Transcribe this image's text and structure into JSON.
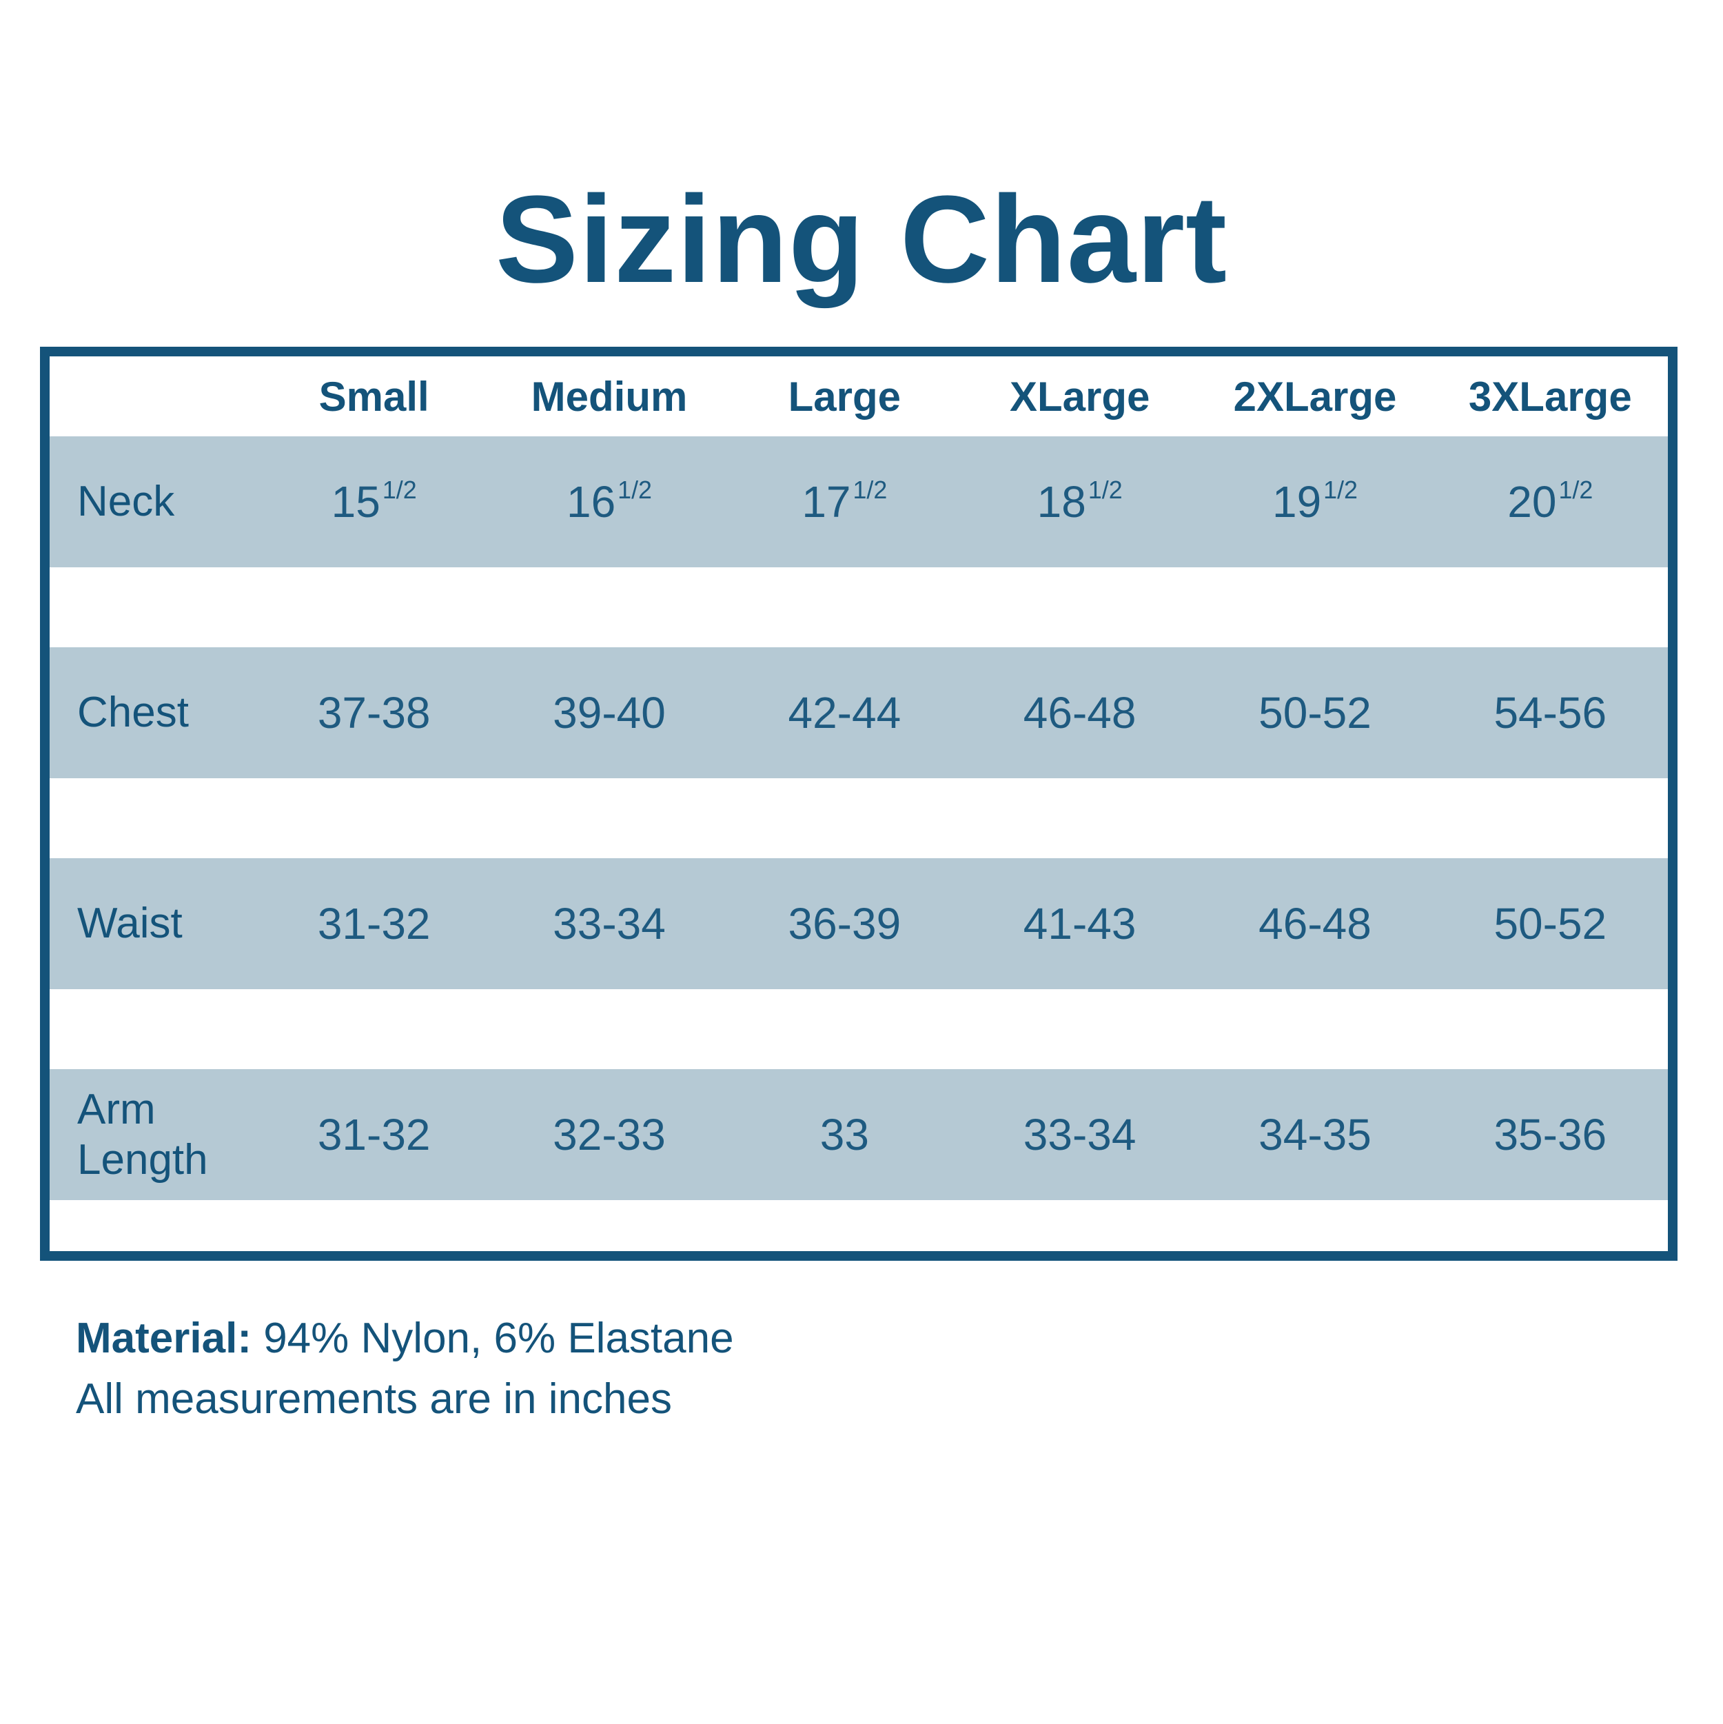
{
  "title": "Sizing Chart",
  "colors": {
    "navy": "#14537A",
    "stripe": "#B5C9D4",
    "value_text": "#1E5A80",
    "background": "#FFFFFF"
  },
  "table": {
    "size_headers": [
      "Small",
      "Medium",
      "Large",
      "XLarge",
      "2XLarge",
      "3XLarge"
    ],
    "rows": [
      {
        "label": "Neck",
        "values": [
          {
            "base": "15",
            "sup": "1/2"
          },
          {
            "base": "16",
            "sup": "1/2"
          },
          {
            "base": "17",
            "sup": "1/2"
          },
          {
            "base": "18",
            "sup": "1/2"
          },
          {
            "base": "19",
            "sup": "1/2"
          },
          {
            "base": "20",
            "sup": "1/2"
          }
        ]
      },
      {
        "label": "Chest",
        "values": [
          "37-38",
          "39-40",
          "42-44",
          "46-48",
          "50-52",
          "54-56"
        ]
      },
      {
        "label": "Waist",
        "values": [
          "31-32",
          "33-34",
          "36-39",
          "41-43",
          "46-48",
          "50-52"
        ]
      },
      {
        "label": "Arm Length",
        "values": [
          "31-32",
          "32-33",
          "33",
          "33-34",
          "34-35",
          "35-36"
        ]
      }
    ]
  },
  "footer": {
    "material_label": "Material:",
    "material_value": "94% Nylon, 6% Elastane",
    "note": "All measurements are in inches"
  },
  "chart_data": {
    "type": "table",
    "title": "Sizing Chart",
    "columns": [
      "",
      "Small",
      "Medium",
      "Large",
      "XLarge",
      "2XLarge",
      "3XLarge"
    ],
    "rows": [
      [
        "Neck",
        "15 1/2",
        "16 1/2",
        "17 1/2",
        "18 1/2",
        "19 1/2",
        "20 1/2"
      ],
      [
        "Chest",
        "37-38",
        "39-40",
        "42-44",
        "46-48",
        "50-52",
        "54-56"
      ],
      [
        "Waist",
        "31-32",
        "33-34",
        "36-39",
        "41-43",
        "46-48",
        "50-52"
      ],
      [
        "Arm Length",
        "31-32",
        "32-33",
        "33",
        "33-34",
        "34-35",
        "35-36"
      ]
    ],
    "notes": [
      "Material: 94% Nylon, 6% Elastane",
      "All measurements are in inches"
    ]
  }
}
